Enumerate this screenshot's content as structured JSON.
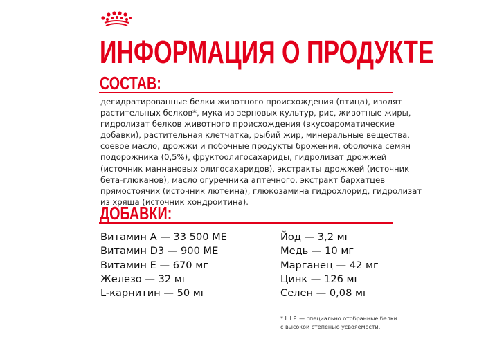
{
  "brand": {
    "logo": "crown-logo",
    "color": "#e2001a"
  },
  "title": "ИНФОРМАЦИЯ О ПРОДУКТЕ",
  "composition": {
    "heading": "СОСТАВ:",
    "lines": [
      "дегидратированные белки животного происхождения (птица), изолят",
      "растительных белков*, мука из зерновых культур, рис, животные жиры,",
      "гидролизат белков животного происхождения (вкусоароматические",
      "добавки), растительная клетчатка, рыбий жир, минеральные вещества,",
      "соевое масло, дрожжи и побочные продукты брожения, оболочка семян",
      "подорожника (0,5%), фруктоолигосахариды, гидролизат дрожжей",
      "(источник маннановых олигосахаридов), экстракты дрожжей (источник",
      "бета-глюканов), масло огуречника аптечного, экстракт бархатцев",
      "прямостоячих (источник лютеина), глюкозамина гидрохлорид, гидролизат",
      "из хряща (источник хондроитина)."
    ]
  },
  "additives": {
    "heading": "ДОБАВКИ:",
    "left": [
      "Витамин А — 33 500 МЕ",
      "Витамин D3 — 900 МЕ",
      "Витамин Е — 670 мг",
      "Железо — 32 мг",
      "L-карнитин — 50 мг"
    ],
    "right": [
      "Йод — 3,2 мг",
      "Медь — 10 мг",
      "Марганец — 42 мг",
      "Цинк — 126 мг",
      "Селен — 0,08 мг"
    ]
  },
  "footnote": [
    "* L.I.P. — специально отобранные белки",
    "с высокой степенью усвояемости."
  ]
}
